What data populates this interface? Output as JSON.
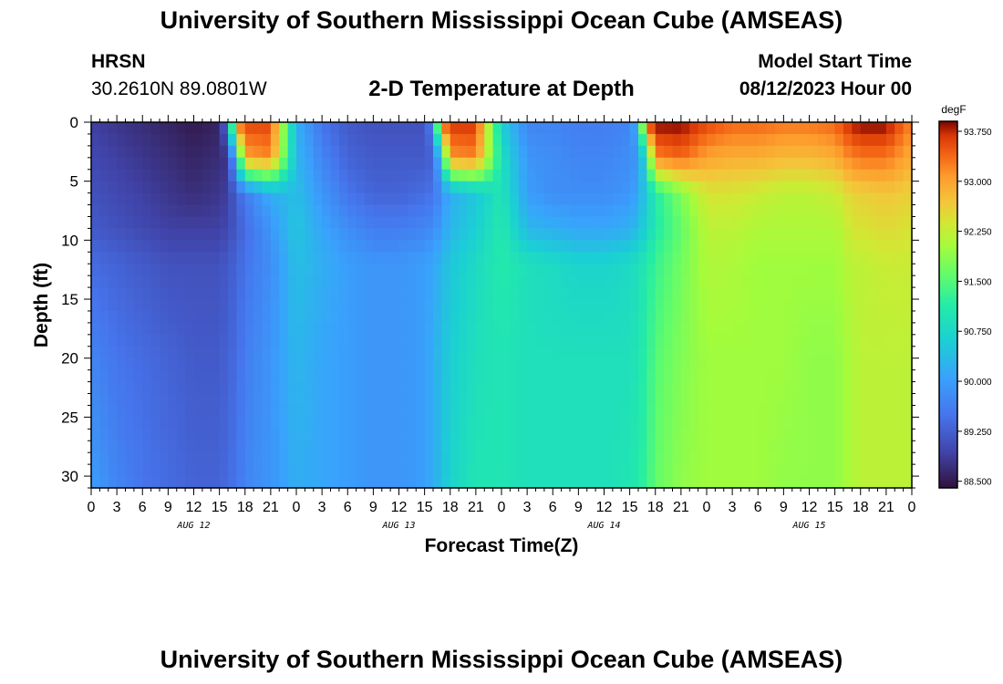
{
  "header": {
    "title": "University of Southern Mississippi Ocean Cube (AMSEAS)",
    "station": "HRSN",
    "coords": "30.2610N  89.0801W",
    "plot_title": "2-D Temperature at Depth",
    "model_start_label": "Model Start Time",
    "model_start_value": "08/12/2023 Hour 00"
  },
  "footer": {
    "repeat_title": "University of Southern Mississippi Ocean Cube (AMSEAS)"
  },
  "chart_data": {
    "type": "heatmap",
    "title": "2-D Temperature at Depth",
    "xlabel": "Forecast Time(Z)",
    "ylabel": "Depth (ft)",
    "x_tick_labels": [
      "0",
      "3",
      "6",
      "9",
      "12",
      "15",
      "18",
      "21",
      "0",
      "3",
      "6",
      "9",
      "12",
      "15",
      "18",
      "21",
      "0",
      "3",
      "6",
      "9",
      "12",
      "15",
      "18",
      "21",
      "0",
      "3",
      "6",
      "9",
      "12",
      "15",
      "18",
      "21",
      "0"
    ],
    "day_labels": [
      {
        "label": "AUG 12",
        "center_hour": 12
      },
      {
        "label": "AUG 13",
        "center_hour": 36
      },
      {
        "label": "AUG 14",
        "center_hour": 60
      },
      {
        "label": "AUG 15",
        "center_hour": 84
      }
    ],
    "x_range_hours": [
      0,
      96
    ],
    "y_range_ft": [
      0,
      31
    ],
    "y_ticks": [
      0,
      5,
      10,
      15,
      20,
      25,
      30
    ],
    "colorbar": {
      "unit": "degF",
      "range": [
        88.4,
        93.9
      ],
      "tick_values": [
        88.5,
        89.25,
        90.0,
        90.75,
        91.5,
        92.25,
        93.0,
        93.75
      ],
      "tick_labels": [
        "88.500",
        "89.250",
        "90.000",
        "90.750",
        "91.500",
        "92.250",
        "93.000",
        "93.750"
      ]
    },
    "depth_levels_ft": [
      0,
      3,
      6,
      9,
      12,
      20,
      31
    ],
    "time_hours": [
      0,
      3,
      6,
      9,
      12,
      15,
      16,
      17,
      18,
      21,
      24,
      27,
      30,
      33,
      36,
      39,
      40,
      41,
      42,
      45,
      48,
      51,
      54,
      57,
      60,
      63,
      64,
      65,
      66,
      69,
      72,
      75,
      78,
      81,
      84,
      87,
      88,
      89,
      90,
      93,
      96
    ],
    "values_degF": [
      [
        88.9,
        88.8,
        88.7,
        88.6,
        88.5,
        88.6,
        89.6,
        93.4,
        93.6,
        93.6,
        90.2,
        89.5,
        89.2,
        89.1,
        89.1,
        89.1,
        89.8,
        93.5,
        93.7,
        93.7,
        90.6,
        89.7,
        89.7,
        89.6,
        89.6,
        89.7,
        90.3,
        93.6,
        93.9,
        93.9,
        93.6,
        93.4,
        93.4,
        93.3,
        93.3,
        93.4,
        93.6,
        93.8,
        93.9,
        93.9,
        93.2
      ],
      [
        89.0,
        88.9,
        88.8,
        88.7,
        88.6,
        88.7,
        88.8,
        90.4,
        93.0,
        93.2,
        90.3,
        89.7,
        89.3,
        89.2,
        89.2,
        89.2,
        89.3,
        90.7,
        93.1,
        93.2,
        90.9,
        89.9,
        89.8,
        89.7,
        89.7,
        89.8,
        89.9,
        91.0,
        93.2,
        93.4,
        93.0,
        92.9,
        92.9,
        92.8,
        92.8,
        92.9,
        93.1,
        93.2,
        93.3,
        93.3,
        92.9
      ],
      [
        89.1,
        89.0,
        88.9,
        88.8,
        88.7,
        88.8,
        88.9,
        89.3,
        89.6,
        90.2,
        90.4,
        89.9,
        89.5,
        89.3,
        89.3,
        89.4,
        89.5,
        89.8,
        90.2,
        90.5,
        91.0,
        90.0,
        89.8,
        89.8,
        89.8,
        89.9,
        90.1,
        90.6,
        91.1,
        91.8,
        92.4,
        92.4,
        92.3,
        92.2,
        92.2,
        92.3,
        92.4,
        92.6,
        92.6,
        92.7,
        92.6
      ],
      [
        89.2,
        89.1,
        89.0,
        88.9,
        88.9,
        88.9,
        89.0,
        89.2,
        89.4,
        89.9,
        90.5,
        90.1,
        89.8,
        89.6,
        89.6,
        89.7,
        89.8,
        90.0,
        90.3,
        90.6,
        91.1,
        90.3,
        90.2,
        90.1,
        90.1,
        90.2,
        90.4,
        90.7,
        91.1,
        91.6,
        92.2,
        92.2,
        92.1,
        92.1,
        92.1,
        92.1,
        92.2,
        92.4,
        92.4,
        92.5,
        92.4
      ],
      [
        89.4,
        89.3,
        89.2,
        89.1,
        89.1,
        89.1,
        89.2,
        89.3,
        89.5,
        89.8,
        90.4,
        90.2,
        90.0,
        89.9,
        89.9,
        90.0,
        90.1,
        90.3,
        90.5,
        90.8,
        91.1,
        90.9,
        90.8,
        90.7,
        90.7,
        90.8,
        90.9,
        91.1,
        91.3,
        91.7,
        92.1,
        92.1,
        92.0,
        92.0,
        92.0,
        92.0,
        92.1,
        92.2,
        92.2,
        92.3,
        92.3
      ],
      [
        89.7,
        89.5,
        89.4,
        89.3,
        89.2,
        89.2,
        89.3,
        89.4,
        89.6,
        89.9,
        90.3,
        90.1,
        90.0,
        89.9,
        89.9,
        90.0,
        90.2,
        90.4,
        90.6,
        90.9,
        91.0,
        90.9,
        90.9,
        90.9,
        90.9,
        90.9,
        91.0,
        91.2,
        91.5,
        91.8,
        92.0,
        92.0,
        92.0,
        92.0,
        91.9,
        91.9,
        92.0,
        92.1,
        92.2,
        92.2,
        92.2
      ],
      [
        90.0,
        89.7,
        89.5,
        89.4,
        89.3,
        89.3,
        89.4,
        89.5,
        89.7,
        89.9,
        90.2,
        90.1,
        90.0,
        89.9,
        89.9,
        90.0,
        90.2,
        90.4,
        90.7,
        91.0,
        91.0,
        90.9,
        90.9,
        90.9,
        90.9,
        91.0,
        91.1,
        91.3,
        91.6,
        91.9,
        92.0,
        92.0,
        92.0,
        91.9,
        91.9,
        91.9,
        92.0,
        92.1,
        92.2,
        92.2,
        92.2
      ]
    ]
  }
}
